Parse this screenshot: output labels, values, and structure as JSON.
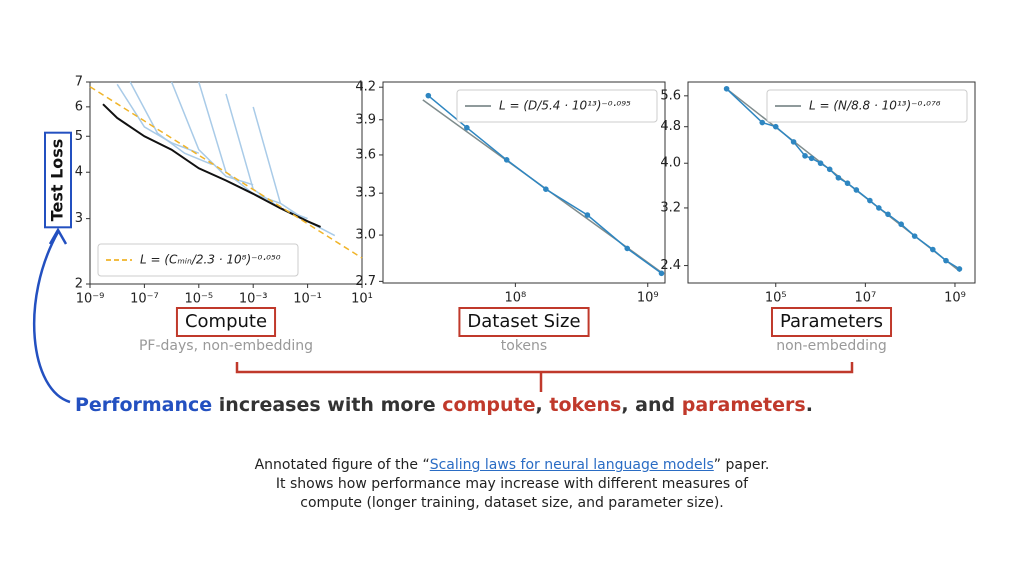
{
  "chart_data": [
    {
      "type": "line",
      "xscale": "log",
      "yscale": "log",
      "xlabel": "Compute",
      "xlabel_note": "PF-days, non-embedding",
      "ylabel": "Test Loss",
      "xlim": [
        1e-09,
        10
      ],
      "ylim": [
        2,
        7
      ],
      "xticks": [
        {
          "value": 1e-09,
          "label": "10⁻⁹"
        },
        {
          "value": 1e-07,
          "label": "10⁻⁷"
        },
        {
          "value": 1e-05,
          "label": "10⁻⁵"
        },
        {
          "value": 0.001,
          "label": "10⁻³"
        },
        {
          "value": 0.1,
          "label": "10⁻¹"
        },
        {
          "value": 10,
          "label": "10¹"
        }
      ],
      "yticks": [
        2,
        3,
        4,
        5,
        6,
        7
      ],
      "legend": "lower left",
      "series": [
        {
          "color": "#a9cbe8",
          "x": [
            1e-08,
            1e-07,
            1e-06,
            1e-05
          ],
          "values": [
            6.9,
            5.3,
            4.8,
            4.5
          ]
        },
        {
          "color": "#a9cbe8",
          "x": [
            3e-08,
            3e-07,
            3e-06,
            3e-05
          ],
          "values": [
            7,
            5.1,
            4.5,
            4.2
          ]
        },
        {
          "color": "#a9cbe8",
          "x": [
            1e-06,
            1e-05,
            0.0001,
            0.001
          ],
          "values": [
            7,
            4.6,
            3.9,
            3.7
          ]
        },
        {
          "color": "#a9cbe8",
          "x": [
            1e-05,
            0.0001,
            0.001,
            0.01
          ],
          "values": [
            7,
            4.0,
            3.5,
            3.3
          ]
        },
        {
          "color": "#a9cbe8",
          "x": [
            0.0001,
            0.001,
            0.01,
            0.1
          ],
          "values": [
            6.5,
            3.6,
            3.2,
            3.0
          ]
        },
        {
          "color": "#a9cbe8",
          "x": [
            0.001,
            0.01,
            0.1,
            1
          ],
          "values": [
            6,
            3.3,
            2.95,
            2.7
          ]
        },
        {
          "color": "#111111",
          "width": 2,
          "x": [
            3e-09,
            1e-08,
            1e-07,
            1e-06,
            1e-05,
            0.0001,
            0.001,
            0.01,
            0.1,
            0.3
          ],
          "values": [
            6.1,
            5.6,
            5.0,
            4.6,
            4.1,
            3.8,
            3.5,
            3.2,
            2.95,
            2.85
          ]
        },
        {
          "name": "L = (Cₘᵢₙ/2.3 · 10⁸)⁻⁰·⁰⁵⁰",
          "color": "#f0b429",
          "style": "dashed",
          "x": [
            1e-09,
            10
          ],
          "values": [
            6.8,
            2.35
          ]
        }
      ]
    },
    {
      "type": "line",
      "xscale": "log",
      "yscale": "log",
      "xlabel": "Dataset Size",
      "xlabel_note": "tokens",
      "xlim": [
        10000000.0,
        1350000000.0
      ],
      "ylim": [
        2.69,
        4.25
      ],
      "xticks": [
        {
          "value": 100000000.0,
          "label": "10⁸"
        },
        {
          "value": 1000000000.0,
          "label": "10⁹"
        }
      ],
      "yticks": [
        2.7,
        {
          "value": 3,
          "label": "3.0"
        },
        3.3,
        3.6,
        3.9,
        4.2
      ],
      "legend": "upper right",
      "series": [
        {
          "name": "L = (D/5.4 · 10¹³)⁻⁰·⁰⁹⁵",
          "color": "#7f8c8d",
          "x": [
            20000000.0,
            1300000000.0
          ],
          "values": [
            4.08,
            2.75
          ]
        },
        {
          "color": "#2e86c1",
          "markers": true,
          "x": [
            22000000.0,
            43000000.0,
            86000000.0,
            170000000.0,
            350000000.0,
            700000000.0,
            1270000000.0
          ],
          "values": [
            4.12,
            3.83,
            3.56,
            3.33,
            3.14,
            2.91,
            2.75
          ]
        }
      ]
    },
    {
      "type": "line",
      "xscale": "log",
      "yscale": "log",
      "xlabel": "Parameters",
      "xlabel_note": "non-embedding",
      "xlim": [
        1100,
        2800000000.0
      ],
      "ylim": [
        2.2,
        6.0
      ],
      "xticks": [
        {
          "value": 100000.0,
          "label": "10⁵"
        },
        {
          "value": 10000000.0,
          "label": "10⁷"
        },
        {
          "value": 1000000000.0,
          "label": "10⁹"
        }
      ],
      "yticks": [
        2.4,
        3.2,
        {
          "value": 4,
          "label": "4.0"
        },
        4.8,
        5.6
      ],
      "legend": "upper right",
      "series": [
        {
          "name": "L = (N/8.8 · 10¹³)⁻⁰·⁰⁷⁶",
          "color": "#7f8c8d",
          "x": [
            8000,
            1300000000.0
          ],
          "values": [
            5.8,
            2.33
          ]
        },
        {
          "color": "#2e86c1",
          "markers": true,
          "x": [
            8000,
            50000,
            100000,
            250000,
            450000,
            630000,
            1000000,
            1600000,
            2500000,
            4000000,
            6300000,
            12600000,
            20000000,
            32000000,
            63000000,
            126000000,
            320000000,
            630000000,
            1260000000
          ],
          "values": [
            5.8,
            4.9,
            4.8,
            4.45,
            4.15,
            4.1,
            4.0,
            3.88,
            3.72,
            3.62,
            3.5,
            3.32,
            3.2,
            3.1,
            2.95,
            2.78,
            2.6,
            2.46,
            2.36
          ]
        }
      ]
    }
  ],
  "headline": [
    {
      "text": "Performance",
      "color": "#2350c0"
    },
    {
      "text": " increases with more ",
      "color": "#333333"
    },
    {
      "text": "compute",
      "color": "#c0392b"
    },
    {
      "text": ", ",
      "color": "#333333"
    },
    {
      "text": "tokens",
      "color": "#c0392b"
    },
    {
      "text": ", and ",
      "color": "#333333"
    },
    {
      "text": "parameters",
      "color": "#c0392b"
    },
    {
      "text": ".",
      "color": "#333333"
    }
  ],
  "caption": {
    "before": "Annotated figure of the “",
    "link": "Scaling laws for neural language models",
    "after": "” paper. It shows how performance may increase with different measures of compute (longer training, dataset size, and parameter size)."
  }
}
